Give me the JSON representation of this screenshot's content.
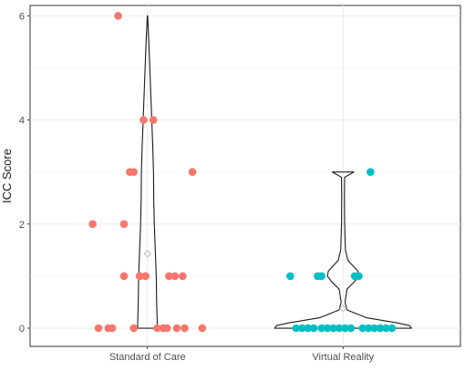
{
  "chart_data": {
    "type": "violin",
    "ylabel": "ICC Score",
    "xlabel": "",
    "ylim": [
      -0.35,
      6.2
    ],
    "yticks": [
      0,
      2,
      4,
      6
    ],
    "categories": [
      "Standard of Care",
      "Virtual Reality"
    ],
    "grid": true,
    "legend": "none",
    "colors": {
      "Standard of Care": "#F8766D",
      "Virtual Reality": "#00BFC4"
    },
    "series": [
      {
        "group": "Standard of Care",
        "points": [
          {
            "x": 0.85,
            "y": 6
          },
          {
            "x": 0.98,
            "y": 4
          },
          {
            "x": 1.03,
            "y": 4
          },
          {
            "x": 0.91,
            "y": 3
          },
          {
            "x": 0.93,
            "y": 3
          },
          {
            "x": 1.23,
            "y": 3
          },
          {
            "x": 0.72,
            "y": 2
          },
          {
            "x": 0.88,
            "y": 2
          },
          {
            "x": 0.88,
            "y": 1
          },
          {
            "x": 0.96,
            "y": 1
          },
          {
            "x": 0.99,
            "y": 1
          },
          {
            "x": 1.11,
            "y": 1
          },
          {
            "x": 1.14,
            "y": 1
          },
          {
            "x": 1.18,
            "y": 1
          },
          {
            "x": 0.75,
            "y": 0
          },
          {
            "x": 0.8,
            "y": 0
          },
          {
            "x": 0.82,
            "y": 0
          },
          {
            "x": 0.93,
            "y": 0
          },
          {
            "x": 1.05,
            "y": 0
          },
          {
            "x": 1.08,
            "y": 0
          },
          {
            "x": 1.1,
            "y": 0
          },
          {
            "x": 1.15,
            "y": 0
          },
          {
            "x": 1.19,
            "y": 0
          },
          {
            "x": 1.28,
            "y": 0
          }
        ],
        "mean": 1.43
      },
      {
        "group": "Virtual Reality",
        "points": [
          {
            "x": 2.14,
            "y": 3
          },
          {
            "x": 1.73,
            "y": 1
          },
          {
            "x": 1.87,
            "y": 1
          },
          {
            "x": 1.89,
            "y": 1
          },
          {
            "x": 2.06,
            "y": 1
          },
          {
            "x": 2.08,
            "y": 1
          },
          {
            "x": 1.76,
            "y": 0
          },
          {
            "x": 1.79,
            "y": 0
          },
          {
            "x": 1.82,
            "y": 0
          },
          {
            "x": 1.85,
            "y": 0
          },
          {
            "x": 1.89,
            "y": 0
          },
          {
            "x": 1.92,
            "y": 0
          },
          {
            "x": 1.95,
            "y": 0
          },
          {
            "x": 1.98,
            "y": 0
          },
          {
            "x": 2.01,
            "y": 0
          },
          {
            "x": 2.04,
            "y": 0
          },
          {
            "x": 2.1,
            "y": 0
          },
          {
            "x": 2.13,
            "y": 0
          },
          {
            "x": 2.16,
            "y": 0
          },
          {
            "x": 2.19,
            "y": 0
          },
          {
            "x": 2.22,
            "y": 0
          },
          {
            "x": 2.25,
            "y": 0
          }
        ],
        "mean": 0.38
      }
    ],
    "violins": [
      {
        "group": "Standard of Care",
        "profile": [
          [
            6,
            0.001
          ],
          [
            5.5,
            0.007
          ],
          [
            5,
            0.012
          ],
          [
            4.5,
            0.017
          ],
          [
            4,
            0.022
          ],
          [
            3.5,
            0.027
          ],
          [
            3,
            0.031
          ],
          [
            2.5,
            0.032
          ],
          [
            2,
            0.035
          ],
          [
            1.5,
            0.04
          ],
          [
            1,
            0.045
          ],
          [
            0.5,
            0.047
          ],
          [
            0.1,
            0.05
          ],
          [
            0,
            0.05
          ]
        ]
      },
      {
        "group": "Virtual Reality",
        "profile": [
          [
            3,
            0.055
          ],
          [
            2.9,
            0.008
          ],
          [
            2.5,
            0.007
          ],
          [
            2,
            0.008
          ],
          [
            1.5,
            0.012
          ],
          [
            1.3,
            0.025
          ],
          [
            1.1,
            0.075
          ],
          [
            1,
            0.08
          ],
          [
            0.9,
            0.06
          ],
          [
            0.75,
            0.02
          ],
          [
            0.5,
            0.01
          ],
          [
            0.35,
            0.02
          ],
          [
            0.2,
            0.12
          ],
          [
            0.1,
            0.28
          ],
          [
            0.05,
            0.34
          ],
          [
            0,
            0.35
          ]
        ]
      }
    ]
  }
}
